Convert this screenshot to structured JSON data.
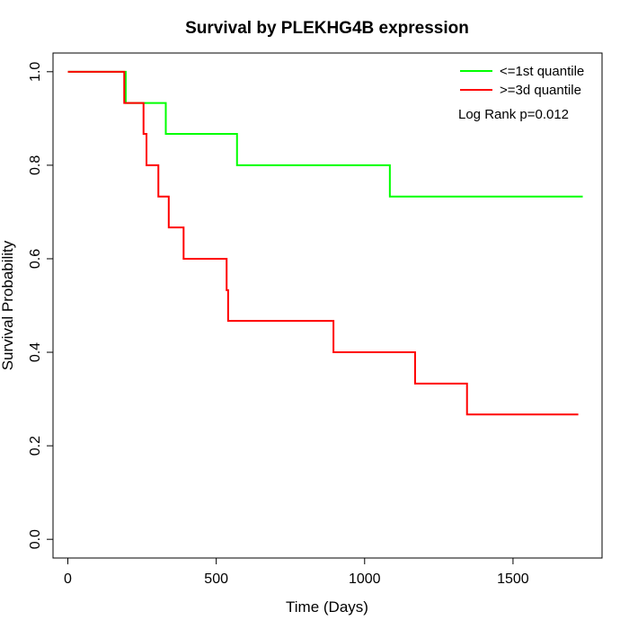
{
  "chart_data": {
    "type": "line",
    "title": "Survival by PLEKHG4B expression",
    "xlabel": "Time (Days)",
    "ylabel": "Survival Probability",
    "xlim": [
      -50,
      1800
    ],
    "ylim": [
      -0.04,
      1.04
    ],
    "xticks": [
      0,
      500,
      1000,
      1500
    ],
    "yticks": [
      0.0,
      0.2,
      0.4,
      0.6,
      0.8,
      1.0
    ],
    "xtick_labels": [
      "0",
      "500",
      "1000",
      "1500"
    ],
    "ytick_labels": [
      "0.0",
      "0.2",
      "0.4",
      "0.6",
      "0.8",
      "1.0"
    ],
    "step": "post",
    "legend_position": "top-right",
    "annotation": "Log Rank p=0.012",
    "series": [
      {
        "name": "<=1st quantile",
        "color": "#00ff00",
        "x": [
          0,
          195,
          330,
          570,
          1085,
          1735
        ],
        "y": [
          1.0,
          0.933,
          0.867,
          0.8,
          0.733,
          0.733
        ]
      },
      {
        "name": ">=3d quantile",
        "color": "#ff0000",
        "x": [
          0,
          190,
          255,
          265,
          305,
          340,
          390,
          535,
          540,
          895,
          1170,
          1345,
          1720
        ],
        "y": [
          1.0,
          0.933,
          0.867,
          0.8,
          0.733,
          0.667,
          0.6,
          0.533,
          0.467,
          0.4,
          0.333,
          0.267,
          0.267
        ]
      }
    ]
  }
}
